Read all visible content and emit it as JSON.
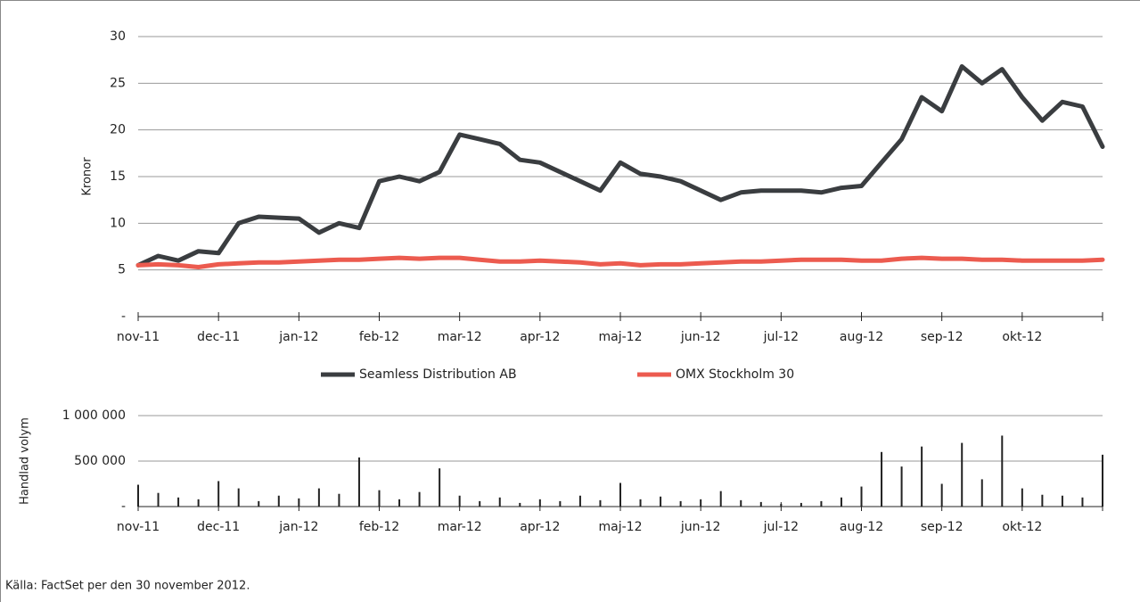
{
  "chart_data": [
    {
      "type": "line",
      "y_label": "Kronor",
      "legend": "bottom",
      "categories": [
        "nov-11",
        null,
        null,
        null,
        "dec-11",
        null,
        null,
        null,
        "jan-12",
        null,
        null,
        null,
        "feb-12",
        null,
        null,
        null,
        "mar-12",
        null,
        null,
        null,
        "apr-12",
        null,
        null,
        null,
        "maj-12",
        null,
        null,
        null,
        "jun-12",
        null,
        null,
        null,
        "jul-12",
        null,
        null,
        null,
        "aug-12",
        null,
        null,
        null,
        "sep-12",
        null,
        null,
        null,
        "okt-12",
        null,
        null,
        null,
        null
      ],
      "series": [
        {
          "name": "Seamless Distribution AB",
          "color": "#3a3d40",
          "values": [
            5.5,
            6.5,
            6,
            7,
            6.8,
            10,
            10.7,
            10.6,
            10.5,
            9,
            10,
            9.5,
            14.5,
            15,
            14.5,
            15.5,
            19.5,
            19,
            18.5,
            16.8,
            16.5,
            15.5,
            14.5,
            13.5,
            16.5,
            15.3,
            15,
            14.5,
            13.5,
            12.5,
            13.3,
            13.5,
            13.5,
            13.5,
            13.3,
            13.8,
            14,
            16.5,
            19,
            23.5,
            22,
            26.8,
            25,
            26.5,
            23.5,
            21,
            23,
            22.5,
            18.2
          ]
        },
        {
          "name": "OMX Stockholm 30",
          "color": "#ec5b4f",
          "values": [
            5.5,
            5.6,
            5.5,
            5.3,
            5.6,
            5.7,
            5.8,
            5.8,
            5.9,
            6,
            6.1,
            6.1,
            6.2,
            6.3,
            6.2,
            6.3,
            6.3,
            6.1,
            5.9,
            5.9,
            6,
            5.9,
            5.8,
            5.6,
            5.7,
            5.5,
            5.6,
            5.6,
            5.7,
            5.8,
            5.9,
            5.9,
            6,
            6.1,
            6.1,
            6.1,
            6,
            6,
            6.2,
            6.3,
            6.2,
            6.2,
            6.1,
            6.1,
            6,
            6,
            6,
            6,
            6.1
          ]
        }
      ],
      "ylim": [
        0,
        30
      ],
      "yticks": [
        {
          "value": 0,
          "label": "-"
        },
        5,
        10,
        15,
        20,
        25,
        30
      ],
      "grid": true
    },
    {
      "type": "bar",
      "y_label": "Handlad volym",
      "color": "#222222",
      "categories": [
        "nov-11",
        null,
        null,
        null,
        "dec-11",
        null,
        null,
        null,
        "jan-12",
        null,
        null,
        null,
        "feb-12",
        null,
        null,
        null,
        "mar-12",
        null,
        null,
        null,
        "apr-12",
        null,
        null,
        null,
        "maj-12",
        null,
        null,
        null,
        "jun-12",
        null,
        null,
        null,
        "jul-12",
        null,
        null,
        null,
        "aug-12",
        null,
        null,
        null,
        "sep-12",
        null,
        null,
        null,
        "okt-12",
        null,
        null,
        null,
        null
      ],
      "values": [
        240000,
        150000,
        100000,
        80000,
        280000,
        200000,
        60000,
        120000,
        90000,
        200000,
        140000,
        540000,
        180000,
        80000,
        160000,
        420000,
        120000,
        60000,
        100000,
        40000,
        80000,
        60000,
        120000,
        70000,
        260000,
        80000,
        110000,
        60000,
        80000,
        170000,
        70000,
        50000,
        30000,
        40000,
        60000,
        100000,
        220000,
        600000,
        440000,
        660000,
        250000,
        700000,
        300000,
        780000,
        200000,
        130000,
        120000,
        100000,
        570000
      ],
      "ylim": [
        0,
        1000000
      ],
      "yticks": [
        {
          "value": 0,
          "label": "-"
        },
        {
          "value": 500000,
          "label": "500 000"
        },
        {
          "value": 1000000,
          "label": "1 000 000"
        }
      ],
      "grid": true
    }
  ],
  "source": "Källa: FactSet per den 30 november 2012."
}
